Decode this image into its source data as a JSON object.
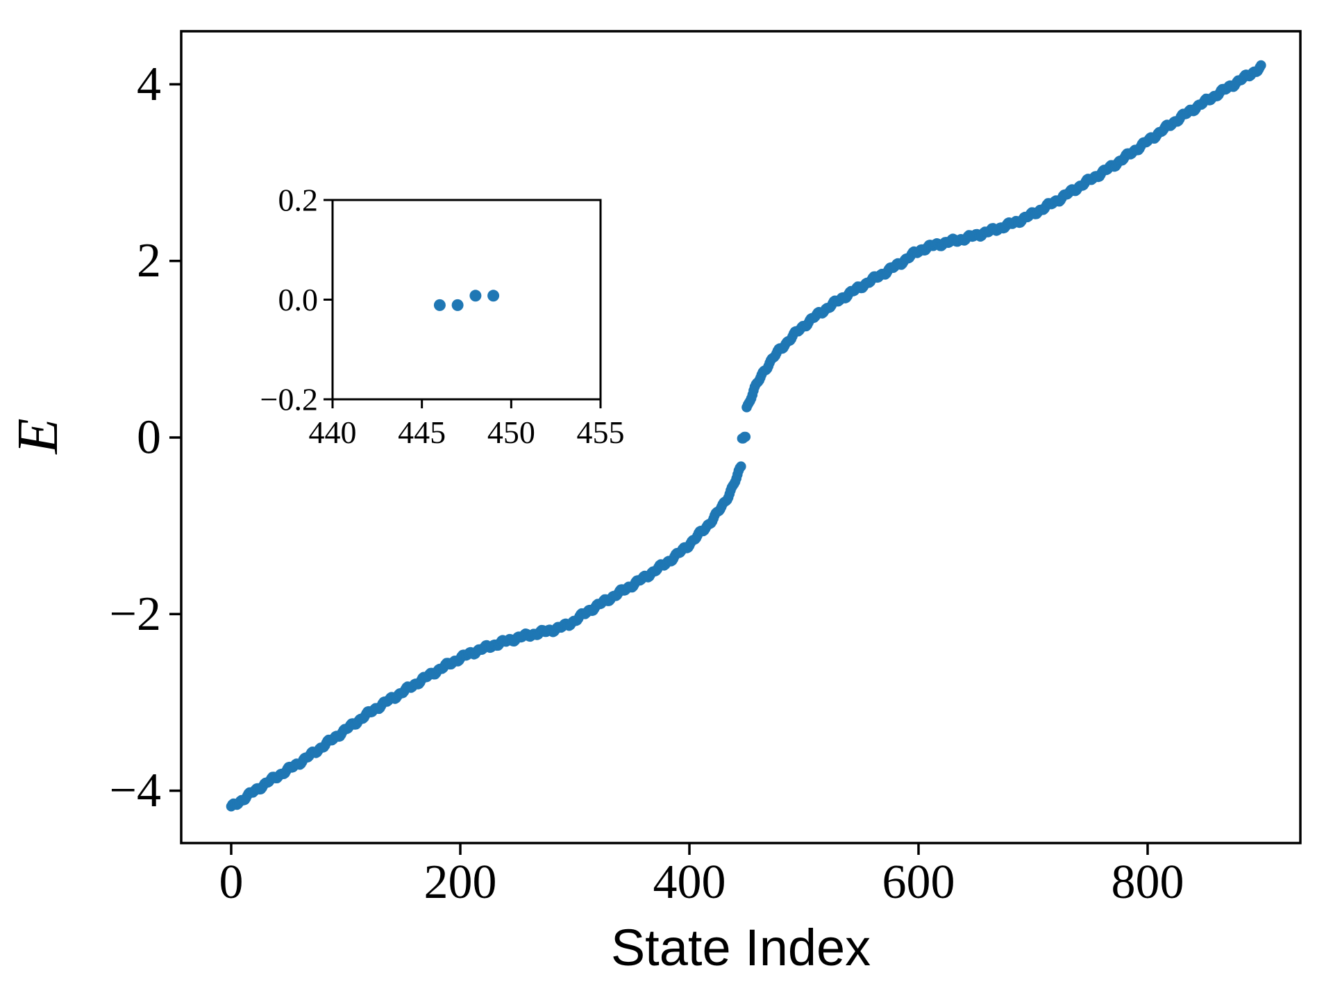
{
  "chart_data": {
    "type": "scatter",
    "title": "",
    "xlabel": "State Index",
    "ylabel": "E",
    "marker_color": "#1f77b4",
    "axis_color": "#000000",
    "background_color": "#ffffff",
    "n_states": 900,
    "xlim": [
      -44,
      933
    ],
    "ylim": [
      -4.6,
      4.6
    ],
    "xticks": [
      0,
      200,
      400,
      600,
      800
    ],
    "yticks": [
      -4,
      -2,
      0,
      2,
      4
    ],
    "grid": false,
    "legend": null,
    "jitter_amplitude": 0.016,
    "band_anchors_lower": [
      [
        0,
        -4.19
      ],
      [
        30,
        -3.92
      ],
      [
        61,
        -3.67
      ],
      [
        101,
        -3.3
      ],
      [
        125,
        -3.08
      ],
      [
        150,
        -2.88
      ],
      [
        180,
        -2.64
      ],
      [
        210,
        -2.44
      ],
      [
        250,
        -2.27
      ],
      [
        290,
        -2.14
      ],
      [
        315,
        -1.94
      ],
      [
        340,
        -1.75
      ],
      [
        365,
        -1.55
      ],
      [
        390,
        -1.32
      ],
      [
        412,
        -1.05
      ],
      [
        428,
        -0.79
      ],
      [
        438,
        -0.55
      ],
      [
        445,
        -0.34
      ]
    ],
    "zero_modes": [
      [
        446,
        -0.011
      ],
      [
        447,
        -0.011
      ],
      [
        448,
        0.008
      ],
      [
        449,
        0.008
      ]
    ],
    "band_anchors_upper": [
      [
        450,
        0.34
      ],
      [
        457,
        0.55
      ],
      [
        467,
        0.79
      ],
      [
        483,
        1.05
      ],
      [
        505,
        1.32
      ],
      [
        530,
        1.55
      ],
      [
        555,
        1.75
      ],
      [
        580,
        1.94
      ],
      [
        605,
        2.14
      ],
      [
        645,
        2.27
      ],
      [
        685,
        2.44
      ],
      [
        715,
        2.64
      ],
      [
        745,
        2.88
      ],
      [
        770,
        3.08
      ],
      [
        794,
        3.3
      ],
      [
        834,
        3.67
      ],
      [
        865,
        3.92
      ],
      [
        899,
        4.19
      ]
    ],
    "inset": {
      "xlim": [
        440,
        455
      ],
      "ylim": [
        -0.2,
        0.2
      ],
      "xticks": [
        440,
        445,
        450,
        455
      ],
      "yticks": [
        -0.2,
        0.0,
        0.2
      ],
      "points": [
        [
          446,
          -0.011
        ],
        [
          447,
          -0.011
        ],
        [
          448,
          0.008
        ],
        [
          449,
          0.008
        ]
      ]
    }
  }
}
